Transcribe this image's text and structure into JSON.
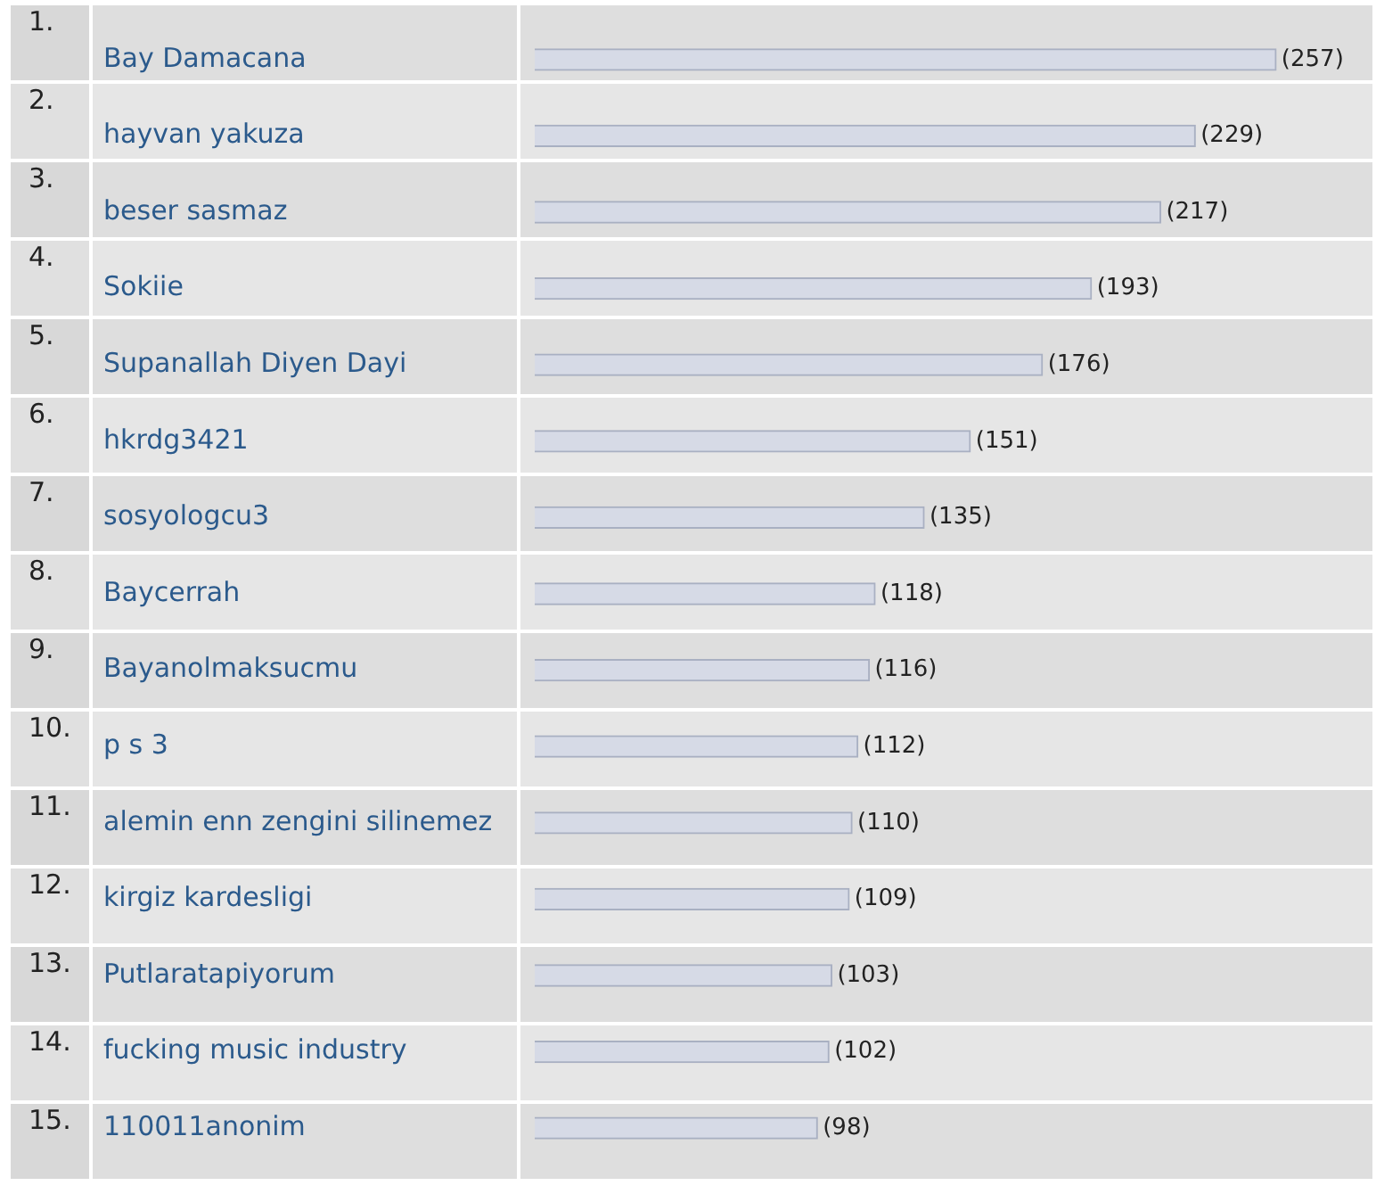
{
  "chart_data": {
    "type": "bar",
    "orientation": "horizontal",
    "tick_labels": "y",
    "categories": [
      "Bay Damacana",
      "hayvan yakuza",
      "beser sasmaz",
      "Sokiie",
      "Supanallah Diyen Dayi",
      "hkrdg3421",
      "sosyologcu3",
      "Baycerrah",
      "Bayanolmaksucmu",
      "p s 3",
      "alemin enn zengini silinemez",
      "kirgiz kardesligi",
      "Putlaratapiyorum",
      "fucking music industry",
      "110011anonim"
    ],
    "values": [
      257,
      229,
      217,
      193,
      176,
      151,
      135,
      118,
      116,
      112,
      110,
      109,
      103,
      102,
      98
    ],
    "value_labels": [
      "(257)",
      "(229)",
      "(217)",
      "(193)",
      "(176)",
      "(151)",
      "(135)",
      "(118)",
      "(116)",
      "(112)",
      "(110)",
      "(109)",
      "(103)",
      "(102)",
      "(98)"
    ],
    "annotations": [
      "1.",
      "2.",
      "3.",
      "4.",
      "5.",
      "6.",
      "7.",
      "8.",
      "9.",
      "10.",
      "11.",
      "12.",
      "13.",
      "14.",
      "15."
    ],
    "color": "#d6dae6"
  }
}
